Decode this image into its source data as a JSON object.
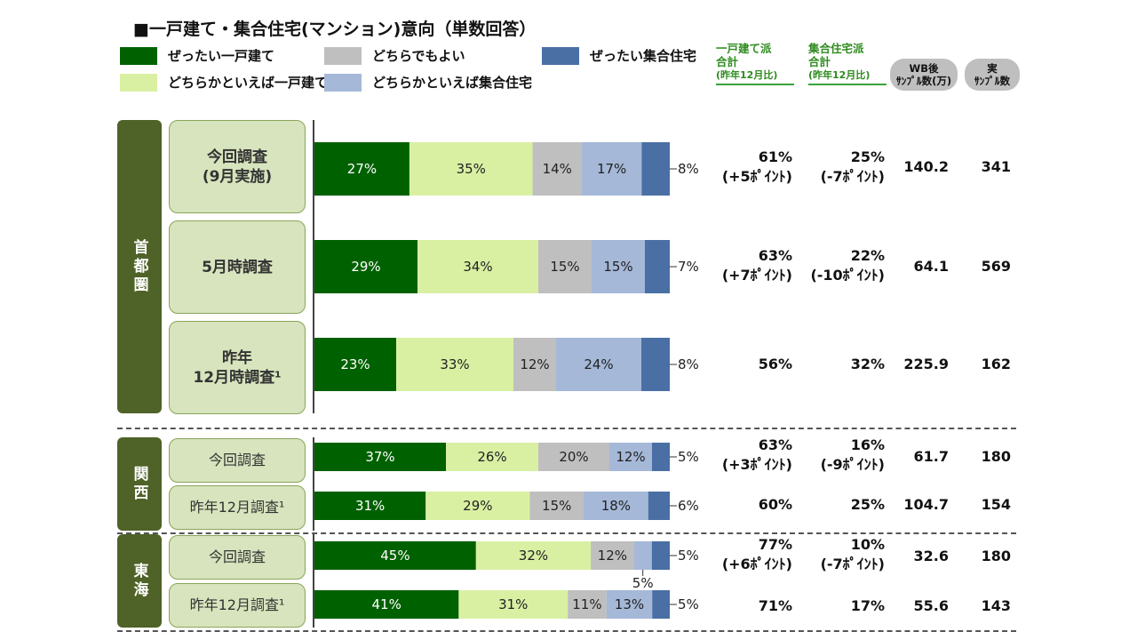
{
  "title": "■一戸建て・集合住宅(マンション)意向（単数回答）",
  "legend": [
    {
      "label": "ぜったい一戸建て",
      "color": "#006100"
    },
    {
      "label": "どちらでもよい",
      "color": "#bfbfbf"
    },
    {
      "label": "ぜったい集合住宅",
      "color": "#4a6fa5"
    },
    {
      "label": "どちらかといえば一戸建て",
      "color": "#d9f0a3"
    },
    {
      "label": "どちらかといえば集合住宅",
      "color": "#a5b8d8"
    }
  ],
  "columns": {
    "house": {
      "line1": "一戸建て派",
      "line2": "合計",
      "line3": "(昨年12月比)"
    },
    "apartment": {
      "line1": "集合住宅派",
      "line2": "合計",
      "line3": "(昨年12月比)"
    },
    "wb": {
      "line1": "WB後",
      "line2": "ｻﾝﾌﾟﾙ数(万)"
    },
    "real": {
      "line1": "実",
      "line2": "ｻﾝﾌﾟﾙ数"
    }
  },
  "regions": [
    {
      "name": "首都圏"
    },
    {
      "name": "関西"
    },
    {
      "name": "東海"
    }
  ],
  "chart_data": {
    "type": "bar",
    "orientation": "horizontal-stacked-100",
    "xlim": [
      0,
      100
    ],
    "series_names": [
      "ぜったい一戸建て",
      "どちらかといえば一戸建て",
      "どちらでもよい",
      "どちらかといえば集合住宅",
      "ぜったい集合住宅"
    ],
    "colors": [
      "#006100",
      "#d9f0a3",
      "#bfbfbf",
      "#a5b8d8",
      "#4a6fa5"
    ],
    "rows": [
      {
        "region": 0,
        "label": "今回調査\n(9月実施)",
        "values": [
          27,
          35,
          14,
          17,
          8
        ],
        "labels": [
          "27%",
          "35%",
          "14%",
          "17%",
          "8%"
        ],
        "house": "61%\n(+5ﾎﾟｲﾝﾄ)",
        "apartment": "25%\n(-7ﾎﾟｲﾝﾄ)",
        "wb": "140.2",
        "real": "341"
      },
      {
        "region": 0,
        "label": "5月時調査",
        "values": [
          29,
          34,
          15,
          15,
          7
        ],
        "labels": [
          "29%",
          "34%",
          "15%",
          "15%",
          "7%"
        ],
        "house": "63%\n(+7ﾎﾟｲﾝﾄ)",
        "apartment": "22%\n(-10ﾎﾟｲﾝﾄ)",
        "wb": "64.1",
        "real": "569"
      },
      {
        "region": 0,
        "label": "昨年\n12月時調査¹",
        "values": [
          23,
          33,
          12,
          24,
          8
        ],
        "labels": [
          "23%",
          "33%",
          "12%",
          "24%",
          "8%"
        ],
        "house": "56%",
        "apartment": "32%",
        "wb": "225.9",
        "real": "162"
      },
      {
        "region": 1,
        "label": "今回調査",
        "values": [
          37,
          26,
          20,
          12,
          5
        ],
        "labels": [
          "37%",
          "26%",
          "20%",
          "12%",
          "5%"
        ],
        "house": "63%\n(+3ﾎﾟｲﾝﾄ)",
        "apartment": "16%\n(-9ﾎﾟｲﾝﾄ)",
        "wb": "61.7",
        "real": "180"
      },
      {
        "region": 1,
        "label": "昨年12月調査¹",
        "values": [
          31,
          29,
          15,
          18,
          6
        ],
        "labels": [
          "31%",
          "29%",
          "15%",
          "18%",
          "6%"
        ],
        "house": "60%",
        "apartment": "25%",
        "wb": "104.7",
        "real": "154"
      },
      {
        "region": 2,
        "label": "今回調査",
        "values": [
          45,
          32,
          12,
          5,
          5
        ],
        "labels": [
          "45%",
          "32%",
          "12%",
          "5%",
          "5%"
        ],
        "house": "77%\n(+6ﾎﾟｲﾝﾄ)",
        "apartment": "10%\n(-7ﾎﾟｲﾝﾄ)",
        "wb": "32.6",
        "real": "180"
      },
      {
        "region": 2,
        "label": "昨年12月調査¹",
        "values": [
          41,
          31,
          11,
          13,
          5
        ],
        "labels": [
          "41%",
          "31%",
          "11%",
          "13%",
          "5%"
        ],
        "house": "71%",
        "apartment": "17%",
        "wb": "55.6",
        "real": "143"
      }
    ]
  }
}
